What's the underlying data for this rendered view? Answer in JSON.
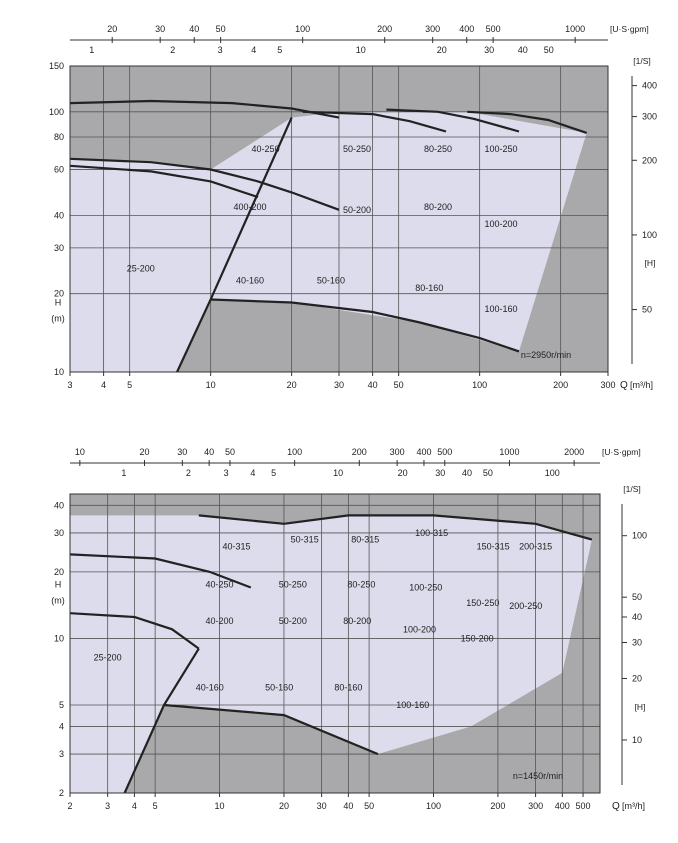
{
  "chart_data": [
    {
      "type": "area",
      "speed_label": "n=2950r/min",
      "x_axis": {
        "label": "Q",
        "unit": "[m³/h]",
        "ticks": [
          3,
          4,
          5,
          10,
          20,
          30,
          40,
          50,
          100,
          200,
          300
        ],
        "range": [
          3,
          300
        ],
        "scale": "log"
      },
      "y_axis": {
        "label": "H",
        "unit": "(m)",
        "ticks": [
          10,
          20,
          30,
          40,
          60,
          80,
          100,
          150
        ],
        "range": [
          10,
          150
        ],
        "scale": "log"
      },
      "top_axes": [
        {
          "unit": "[U·S·gpm]",
          "ticks": [
            20,
            30,
            40,
            50,
            100,
            200,
            300,
            400,
            500,
            1000
          ]
        },
        {
          "ticks": [
            1,
            2,
            3,
            4,
            5,
            10,
            20,
            30,
            40,
            50
          ]
        }
      ],
      "right_axes": [
        {
          "unit": "[1/S]",
          "ticks": []
        },
        {
          "ticks": [
            400,
            300,
            200,
            100,
            50
          ]
        },
        {
          "unit": "[H]",
          "ticks": []
        }
      ],
      "regions": [
        {
          "label": "25-200",
          "lx": 5.5,
          "ly": 25
        },
        {
          "label": "40-160",
          "lx": 14,
          "ly": 22.5
        },
        {
          "label": "400-200",
          "lx": 14,
          "ly": 43
        },
        {
          "label": "40-250",
          "lx": 16,
          "ly": 72
        },
        {
          "label": "50-160",
          "lx": 28,
          "ly": 22.5
        },
        {
          "label": "50-200",
          "lx": 35,
          "ly": 42
        },
        {
          "label": "50-250",
          "lx": 35,
          "ly": 72
        },
        {
          "label": "80-160",
          "lx": 65,
          "ly": 21
        },
        {
          "label": "80-200",
          "lx": 70,
          "ly": 43
        },
        {
          "label": "80-250",
          "lx": 70,
          "ly": 72
        },
        {
          "label": "100-160",
          "lx": 120,
          "ly": 17.5
        },
        {
          "label": "100-200",
          "lx": 120,
          "ly": 37
        },
        {
          "label": "100-250",
          "lx": 120,
          "ly": 72
        }
      ],
      "curves": [
        {
          "name": "top",
          "pts": [
            [
              3,
              108
            ],
            [
              6,
              110
            ],
            [
              12,
              108
            ],
            [
              20,
              103
            ],
            [
              30,
              95
            ]
          ]
        },
        {
          "name": "mid",
          "pts": [
            [
              3,
              66
            ],
            [
              6,
              64
            ],
            [
              10,
              60
            ],
            [
              15,
              54
            ],
            [
              20,
              49
            ],
            [
              30,
              42
            ]
          ]
        },
        {
          "name": "mid2",
          "pts": [
            [
              3,
              62
            ],
            [
              6,
              59
            ],
            [
              10,
              54
            ],
            [
              15,
              47
            ]
          ]
        },
        {
          "name": "bottom",
          "pts": [
            [
              10,
              19
            ],
            [
              20,
              18.5
            ],
            [
              40,
              17
            ],
            [
              60,
              15.5
            ],
            [
              100,
              13.5
            ],
            [
              140,
              12
            ]
          ]
        }
      ],
      "blocks": [
        {
          "pts": [
            [
              22,
              100
            ],
            [
              40,
              98
            ],
            [
              55,
              92
            ],
            [
              75,
              84
            ]
          ],
          "bot": [
            [
              22,
              18
            ],
            [
              40,
              17
            ],
            [
              75,
              15
            ]
          ]
        },
        {
          "pts": [
            [
              45,
              102
            ],
            [
              70,
              100
            ],
            [
              95,
              94
            ],
            [
              140,
              84
            ]
          ]
        },
        {
          "pts": [
            [
              90,
              100
            ],
            [
              130,
              98
            ],
            [
              180,
              93
            ],
            [
              250,
              83
            ]
          ]
        }
      ]
    },
    {
      "type": "area",
      "speed_label": "n=1450r/min",
      "x_axis": {
        "label": "Q",
        "unit": "[m³/h]",
        "ticks": [
          2,
          3,
          4,
          5,
          10,
          20,
          30,
          40,
          50,
          100,
          200,
          300,
          400,
          500
        ],
        "range": [
          2,
          600
        ],
        "scale": "log"
      },
      "y_axis": {
        "label": "H",
        "unit": "(m)",
        "ticks": [
          2,
          3,
          4,
          5,
          10,
          20,
          30,
          40
        ],
        "range": [
          2,
          45
        ],
        "scale": "log"
      },
      "top_axes": [
        {
          "unit": "[U·S·gpm]",
          "ticks": [
            10,
            20,
            30,
            40,
            50,
            100,
            200,
            300,
            400,
            500,
            1000,
            2000
          ]
        },
        {
          "ticks": [
            1,
            2,
            3,
            4,
            5,
            10,
            20,
            30,
            40,
            50,
            100
          ]
        }
      ],
      "right_axes": [
        {
          "unit": "[1/S]",
          "ticks": []
        },
        {
          "ticks": [
            100,
            50,
            40,
            30,
            20,
            10
          ]
        },
        {
          "unit": "[H]",
          "ticks": []
        }
      ],
      "regions": [
        {
          "label": "25-200",
          "lx": 3,
          "ly": 8.2
        },
        {
          "label": "40-160",
          "lx": 9,
          "ly": 6
        },
        {
          "label": "40-200",
          "lx": 10,
          "ly": 12
        },
        {
          "label": "40-250",
          "lx": 10,
          "ly": 17.5
        },
        {
          "label": "40-315",
          "lx": 12,
          "ly": 26
        },
        {
          "label": "50-160",
          "lx": 19,
          "ly": 6
        },
        {
          "label": "50-200",
          "lx": 22,
          "ly": 12
        },
        {
          "label": "50-250",
          "lx": 22,
          "ly": 17.5
        },
        {
          "label": "50-315",
          "lx": 25,
          "ly": 28
        },
        {
          "label": "80-160",
          "lx": 40,
          "ly": 6
        },
        {
          "label": "80-200",
          "lx": 44,
          "ly": 12
        },
        {
          "label": "80-250",
          "lx": 46,
          "ly": 17.5
        },
        {
          "label": "80-315",
          "lx": 48,
          "ly": 28
        },
        {
          "label": "100-160",
          "lx": 80,
          "ly": 5
        },
        {
          "label": "100-200",
          "lx": 86,
          "ly": 11
        },
        {
          "label": "100-250",
          "lx": 92,
          "ly": 17
        },
        {
          "label": "100-315",
          "lx": 98,
          "ly": 30
        },
        {
          "label": "150-200",
          "lx": 160,
          "ly": 10
        },
        {
          "label": "150-250",
          "lx": 170,
          "ly": 14.5
        },
        {
          "label": "150-315",
          "lx": 190,
          "ly": 26
        },
        {
          "label": "200-250",
          "lx": 270,
          "ly": 14
        },
        {
          "label": "200-315",
          "lx": 300,
          "ly": 26
        }
      ]
    }
  ]
}
